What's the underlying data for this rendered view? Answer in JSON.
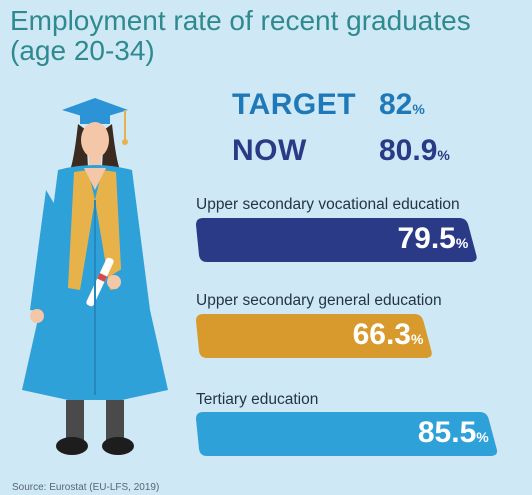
{
  "title_line1": "Employment rate of recent graduates",
  "title_line2": "(age 20-34)",
  "target": {
    "label": "TARGET",
    "value": "82",
    "unit": "%"
  },
  "now": {
    "label": "NOW",
    "value": "80.9",
    "unit": "%"
  },
  "source": "Source: Eurostat (EU-LFS, 2019)",
  "colors": {
    "background": "#cfe8f5",
    "title": "#2f8a8f",
    "target": "#1f79b8",
    "now": "#2b3a86"
  },
  "chart_data": {
    "type": "bar",
    "categories": [
      "Upper secondary vocational education",
      "Upper secondary general education",
      "Tertiary education"
    ],
    "values": [
      79.5,
      66.3,
      85.5
    ],
    "value_labels": [
      "79.5",
      "66.3",
      "85.5"
    ],
    "unit": "%",
    "colors": [
      "#2b3a86",
      "#d89a2c",
      "#2ea2d8"
    ],
    "xlim": [
      0,
      100
    ]
  }
}
